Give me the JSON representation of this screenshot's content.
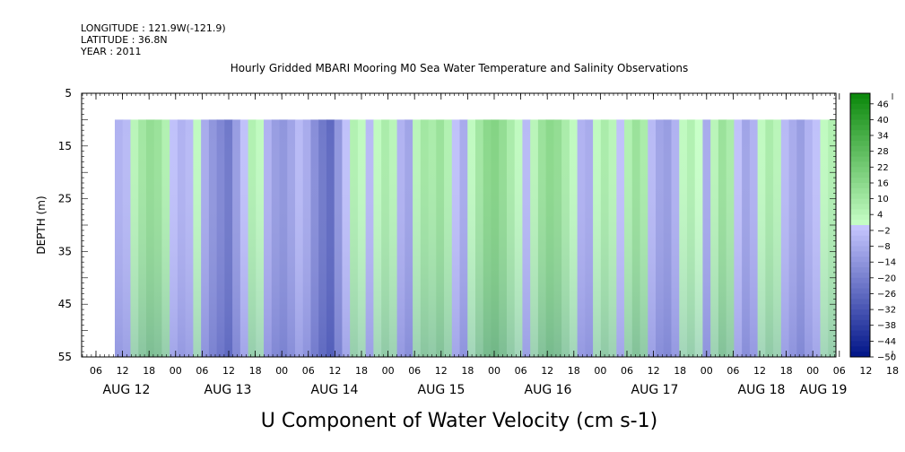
{
  "header": {
    "longitude": "LONGITUDE : 121.9W(-121.9)",
    "latitude": "LATITUDE : 36.8N",
    "year": "YEAR : 2011"
  },
  "chart_data": {
    "type": "heatmap",
    "title": "Hourly Gridded MBARI Mooring M0 Sea Water Temperature and Salinity Observations",
    "xlabel": "U Component of Water Velocity (cm s-1)",
    "ylabel": "DEPTH (m)",
    "x_hour_ticks": [
      "06",
      "12",
      "18",
      "00",
      "06",
      "12",
      "18",
      "00",
      "06",
      "12",
      "18",
      "00",
      "06",
      "12",
      "18",
      "00",
      "06",
      "12",
      "18",
      "00",
      "06",
      "12",
      "18",
      "00",
      "06",
      "12",
      "18",
      "00",
      "06",
      "12",
      "18",
      "00"
    ],
    "x_day_labels": [
      "AUG 12",
      "AUG 13",
      "AUG 14",
      "AUG 15",
      "AUG 16",
      "AUG 17",
      "AUG 18",
      "AUG 19"
    ],
    "y_ticks": [
      5,
      15,
      25,
      35,
      45,
      55
    ],
    "ylim": [
      55,
      5
    ],
    "data_depth_range": [
      10,
      55
    ],
    "colorbar": {
      "levels": [
        -50,
        -44,
        -38,
        -32,
        -26,
        -20,
        -14,
        -8,
        -2,
        4,
        10,
        16,
        22,
        28,
        34,
        40,
        46
      ],
      "low_color": "#001a66",
      "mid_color": "#c8c8ff",
      "high_color": "#0a3d0a"
    },
    "column_values": [
      -6,
      -4,
      4,
      10,
      14,
      12,
      6,
      -2,
      -6,
      -4,
      2,
      -8,
      -14,
      -18,
      -22,
      -12,
      -2,
      6,
      2,
      -6,
      -12,
      -14,
      -10,
      -4,
      -8,
      -16,
      -22,
      -26,
      -14,
      -2,
      6,
      2,
      -4,
      2,
      8,
      4,
      -6,
      -10,
      4,
      10,
      8,
      12,
      6,
      -2,
      -8,
      2,
      10,
      16,
      18,
      14,
      8,
      2,
      -4,
      4,
      12,
      16,
      14,
      8,
      2,
      -6,
      -8,
      2,
      8,
      4,
      -2,
      6,
      12,
      8,
      -4,
      -10,
      -12,
      -6,
      2,
      6,
      0,
      -8,
      4,
      12,
      8,
      -2,
      -10,
      -6,
      2,
      8,
      4,
      -4,
      -8,
      -12,
      -6,
      -2,
      2,
      6
    ]
  }
}
